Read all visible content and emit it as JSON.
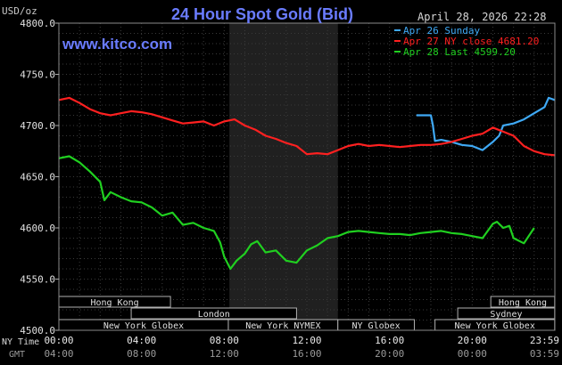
{
  "chart_data": {
    "type": "line",
    "title": "24 Hour Spot Gold (Bid)",
    "brand": "www.kitco.com",
    "timestamp": "April 28, 2026 22:28",
    "ylabel": "USD/oz",
    "ylim": [
      4500,
      4800
    ],
    "y_ticks": [
      "4500.0",
      "4550.0",
      "4600.0",
      "4650.0",
      "4700.0",
      "4750.0",
      "4800.0"
    ],
    "xlim": [
      0,
      24
    ],
    "ny_time_label": "NY Time",
    "gmt_label": "GMT",
    "x_ticks_ny": [
      "00:00",
      "04:00",
      "08:00",
      "12:00",
      "16:00",
      "20:00",
      "23:59"
    ],
    "x_ticks_gmt": [
      "04:00",
      "08:00",
      "12:00",
      "16:00",
      "20:00",
      "00:00",
      "03:59"
    ],
    "legend": [
      {
        "label": "Apr 26 Sunday",
        "color": "#3fa9f5"
      },
      {
        "label": "Apr 27 NY close 4681.20",
        "color": "#ff2020"
      },
      {
        "label": "Apr 28 Last 4599.20",
        "color": "#20d020"
      }
    ],
    "shaded_region": [
      8.25,
      13.5
    ],
    "sessions": [
      {
        "label": "Hong Kong",
        "start": 0,
        "end": 5.4,
        "row": 0
      },
      {
        "label": "Hong Kong",
        "start": 20.9,
        "end": 23.99,
        "row": 0
      },
      {
        "label": "London",
        "start": 3.5,
        "end": 11.5,
        "row": 1
      },
      {
        "label": "Sydney",
        "start": 19.3,
        "end": 23.99,
        "row": 1
      },
      {
        "label": "New York Globex",
        "start": 0,
        "end": 8.2,
        "row": 2
      },
      {
        "label": "New York NYMEX",
        "start": 8.2,
        "end": 13.5,
        "row": 2
      },
      {
        "label": "NY Globex",
        "start": 13.5,
        "end": 17.2,
        "row": 2
      },
      {
        "label": "New York Globex",
        "start": 18.2,
        "end": 23.99,
        "row": 2
      }
    ],
    "series": [
      {
        "name": "Apr 26 Sunday",
        "color": "#3fa9f5",
        "x": [
          17.3,
          18.0,
          18.1,
          18.2,
          18.5,
          19.0,
          19.5,
          20.0,
          20.5,
          21.0,
          21.3,
          21.5,
          22.0,
          22.5,
          23.0,
          23.5,
          23.7,
          23.99
        ],
        "y": [
          4710,
          4710,
          4700,
          4685,
          4686,
          4684,
          4681,
          4680,
          4676,
          4684,
          4690,
          4700,
          4702,
          4706,
          4712,
          4718,
          4727,
          4725
        ]
      },
      {
        "name": "Apr 27 NY close 4681.20",
        "color": "#ff2020",
        "x": [
          0.0,
          0.5,
          1.0,
          1.5,
          2.0,
          2.5,
          3.0,
          3.5,
          4.0,
          4.5,
          5.0,
          5.5,
          6.0,
          6.5,
          7.0,
          7.5,
          8.0,
          8.5,
          9.0,
          9.5,
          10.0,
          10.5,
          11.0,
          11.5,
          12.0,
          12.5,
          13.0,
          13.5,
          14.0,
          14.5,
          15.0,
          15.5,
          16.0,
          16.5,
          17.0,
          17.5,
          18.0,
          18.5,
          19.0,
          19.5,
          20.0,
          20.5,
          21.0,
          21.5,
          22.0,
          22.5,
          23.0,
          23.5,
          23.99
        ],
        "y": [
          4725,
          4727,
          4722,
          4716,
          4712,
          4710,
          4712,
          4714,
          4713,
          4711,
          4708,
          4705,
          4702,
          4703,
          4704,
          4700,
          4704,
          4706,
          4700,
          4696,
          4690,
          4687,
          4683,
          4680,
          4672,
          4673,
          4672,
          4676,
          4680,
          4682,
          4680,
          4681,
          4680,
          4679,
          4680,
          4681,
          4681,
          4682,
          4684,
          4687,
          4690,
          4692,
          4698,
          4694,
          4690,
          4680,
          4675,
          4672,
          4671
        ]
      },
      {
        "name": "Apr 28 Last 4599.20",
        "color": "#20d020",
        "x": [
          0.0,
          0.5,
          1.0,
          1.5,
          2.0,
          2.2,
          2.5,
          3.0,
          3.5,
          4.0,
          4.5,
          5.0,
          5.5,
          6.0,
          6.5,
          7.0,
          7.5,
          7.8,
          8.0,
          8.3,
          8.6,
          9.0,
          9.3,
          9.6,
          10.0,
          10.5,
          11.0,
          11.5,
          12.0,
          12.5,
          13.0,
          13.5,
          14.0,
          14.5,
          15.0,
          15.5,
          16.0,
          16.5,
          17.0,
          17.5,
          18.0,
          18.5,
          19.0,
          19.5,
          20.0,
          20.5,
          21.0,
          21.2,
          21.5,
          21.8,
          22.0,
          22.5,
          22.7,
          23.0
        ],
        "y": [
          4668,
          4670,
          4664,
          4655,
          4645,
          4627,
          4635,
          4630,
          4626,
          4625,
          4620,
          4612,
          4615,
          4603,
          4605,
          4600,
          4597,
          4586,
          4572,
          4560,
          4568,
          4575,
          4584,
          4587,
          4576,
          4578,
          4568,
          4566,
          4578,
          4583,
          4590,
          4592,
          4596,
          4597,
          4596,
          4595,
          4594,
          4594,
          4593,
          4595,
          4596,
          4597,
          4595,
          4594,
          4592,
          4590,
          4604,
          4606,
          4600,
          4602,
          4590,
          4585,
          4591,
          4600
        ]
      }
    ]
  }
}
